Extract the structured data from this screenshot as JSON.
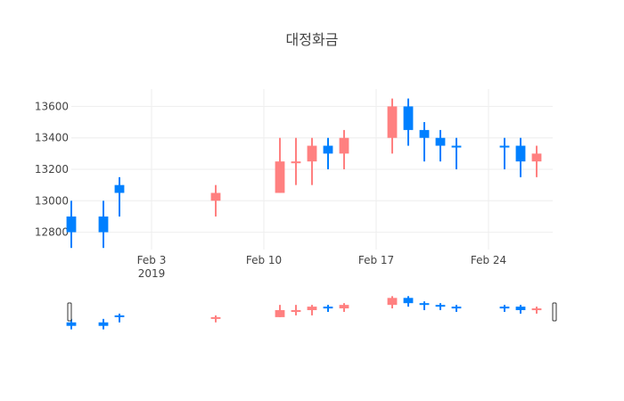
{
  "chart_data": {
    "type": "candlestick",
    "title": "대정화금",
    "xlabel": "",
    "ylabel": "",
    "x_range": [
      "2019-01-29",
      "2019-02-28"
    ],
    "ylim": [
      12690,
      13710
    ],
    "y_ticks": [
      12800,
      13000,
      13200,
      13400,
      13600
    ],
    "x_ticks": [
      {
        "date": "2019-02-03",
        "label": "Feb 3",
        "sublabel": "2019"
      },
      {
        "date": "2019-02-10",
        "label": "Feb 10",
        "sublabel": ""
      },
      {
        "date": "2019-02-17",
        "label": "Feb 17",
        "sublabel": ""
      },
      {
        "date": "2019-02-24",
        "label": "Feb 24",
        "sublabel": ""
      }
    ],
    "increasing_color": "#ff8080",
    "decreasing_color": "#0080ff",
    "grid": true,
    "legend": "none",
    "range_slider": true,
    "candles": [
      {
        "date": "2019-01-29",
        "open": 12900,
        "high": 13000,
        "low": 12700,
        "close": 12800
      },
      {
        "date": "2019-01-31",
        "open": 12900,
        "high": 13000,
        "low": 12700,
        "close": 12800
      },
      {
        "date": "2019-02-01",
        "open": 13100,
        "high": 13150,
        "low": 12900,
        "close": 13050
      },
      {
        "date": "2019-02-07",
        "open": 13000,
        "high": 13100,
        "low": 12900,
        "close": 13050
      },
      {
        "date": "2019-02-11",
        "open": 13050,
        "high": 13400,
        "low": 13050,
        "close": 13250
      },
      {
        "date": "2019-02-12",
        "open": 13250,
        "high": 13400,
        "low": 13100,
        "close": 13250
      },
      {
        "date": "2019-02-13",
        "open": 13250,
        "high": 13400,
        "low": 13100,
        "close": 13350
      },
      {
        "date": "2019-02-14",
        "open": 13350,
        "high": 13400,
        "low": 13200,
        "close": 13300
      },
      {
        "date": "2019-02-15",
        "open": 13300,
        "high": 13450,
        "low": 13200,
        "close": 13400
      },
      {
        "date": "2019-02-18",
        "open": 13400,
        "high": 13650,
        "low": 13300,
        "close": 13600
      },
      {
        "date": "2019-02-19",
        "open": 13600,
        "high": 13650,
        "low": 13350,
        "close": 13450
      },
      {
        "date": "2019-02-20",
        "open": 13450,
        "high": 13500,
        "low": 13250,
        "close": 13400
      },
      {
        "date": "2019-02-21",
        "open": 13400,
        "high": 13450,
        "low": 13250,
        "close": 13350
      },
      {
        "date": "2019-02-22",
        "open": 13350,
        "high": 13400,
        "low": 13200,
        "close": 13340
      },
      {
        "date": "2019-02-25",
        "open": 13350,
        "high": 13400,
        "low": 13200,
        "close": 13340
      },
      {
        "date": "2019-02-26",
        "open": 13350,
        "high": 13400,
        "low": 13150,
        "close": 13250
      },
      {
        "date": "2019-02-27",
        "open": 13250,
        "high": 13350,
        "low": 13150,
        "close": 13300
      }
    ]
  }
}
